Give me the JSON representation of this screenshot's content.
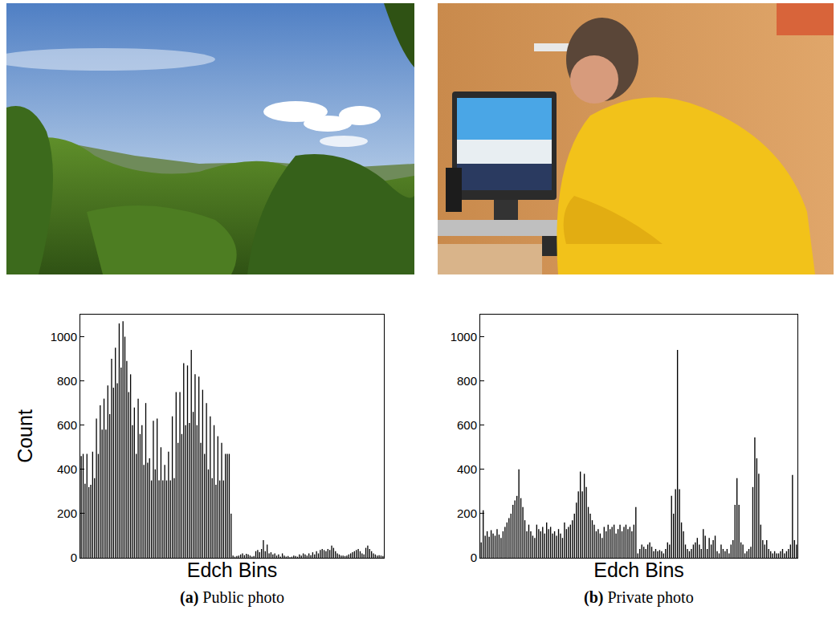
{
  "chart_data": [
    {
      "type": "bar",
      "title": "(a) Public photo",
      "x_label": "Edch Bins",
      "y_label": "Count",
      "color": "#000000",
      "grid": false,
      "tick_labels": "y",
      "ylim": [
        0,
        1100
      ],
      "yticks": [
        0,
        200,
        400,
        600,
        800,
        1000
      ],
      "categories": [
        null,
        null,
        null,
        null,
        null,
        null,
        null,
        null,
        null,
        null,
        null,
        null,
        null,
        null,
        null,
        null,
        null,
        null,
        null,
        null,
        null,
        null,
        null,
        null,
        null,
        null,
        null,
        null,
        null,
        null,
        null,
        null,
        null,
        null,
        null,
        null,
        null,
        null,
        null,
        null,
        null,
        null,
        null,
        null,
        null,
        null,
        null,
        null,
        null,
        null,
        null,
        null,
        null,
        null,
        null,
        null,
        null,
        null,
        null,
        null,
        null,
        null,
        null,
        null,
        null,
        null,
        null,
        null,
        null,
        null,
        null,
        null,
        null,
        null,
        null,
        null,
        null,
        null,
        null,
        null,
        null,
        null,
        null,
        null,
        null,
        null,
        null,
        null,
        null,
        null,
        null,
        null,
        null,
        null,
        null,
        null,
        null,
        null,
        null,
        null,
        null,
        null,
        null,
        null,
        null,
        null,
        null,
        null,
        null,
        null,
        null,
        null,
        null,
        null,
        null,
        null,
        null,
        null,
        null,
        null,
        null,
        null,
        null,
        null,
        null,
        null,
        null,
        null,
        null,
        null,
        null,
        null,
        null,
        null,
        null,
        null,
        null,
        null,
        null,
        null,
        null,
        null,
        null,
        null,
        null,
        null,
        null,
        null,
        null,
        null,
        null,
        null,
        null,
        null,
        null,
        null,
        null,
        null,
        null,
        null
      ],
      "values": [
        460,
        470,
        335,
        470,
        320,
        330,
        480,
        360,
        630,
        470,
        690,
        580,
        720,
        580,
        780,
        650,
        900,
        770,
        950,
        790,
        1060,
        860,
        1070,
        1000,
        890,
        750,
        830,
        600,
        680,
        470,
        720,
        560,
        600,
        420,
        700,
        430,
        450,
        350,
        620,
        400,
        630,
        350,
        500,
        350,
        420,
        350,
        480,
        350,
        640,
        360,
        750,
        520,
        750,
        560,
        880,
        600,
        870,
        610,
        940,
        660,
        830,
        600,
        820,
        520,
        760,
        470,
        700,
        400,
        640,
        360,
        600,
        330,
        550,
        350,
        520,
        350,
        470,
        470,
        470,
        200,
        10,
        5,
        8,
        10,
        15,
        20,
        12,
        18,
        15,
        10,
        5,
        8,
        30,
        35,
        25,
        40,
        80,
        30,
        60,
        20,
        25,
        15,
        20,
        10,
        15,
        5,
        20,
        10,
        5,
        8,
        3,
        5,
        10,
        8,
        5,
        15,
        10,
        20,
        15,
        10,
        20,
        12,
        25,
        15,
        30,
        20,
        35,
        40,
        35,
        30,
        40,
        35,
        55,
        45,
        30,
        20,
        15,
        10,
        10,
        8,
        10,
        15,
        20,
        25,
        30,
        35,
        40,
        30,
        20,
        15,
        45,
        55,
        40,
        30,
        20,
        15,
        10,
        12,
        10,
        8
      ]
    },
    {
      "type": "bar",
      "title": "(b) Private photo",
      "x_label": "Edch Bins",
      "color": "#000000",
      "grid": false,
      "tick_labels": "y",
      "ylim": [
        0,
        1100
      ],
      "yticks": [
        0,
        200,
        400,
        600,
        800,
        1000
      ],
      "categories": [
        null,
        null,
        null,
        null,
        null,
        null,
        null,
        null,
        null,
        null,
        null,
        null,
        null,
        null,
        null,
        null,
        null,
        null,
        null,
        null,
        null,
        null,
        null,
        null,
        null,
        null,
        null,
        null,
        null,
        null,
        null,
        null,
        null,
        null,
        null,
        null,
        null,
        null,
        null,
        null,
        null,
        null,
        null,
        null,
        null,
        null,
        null,
        null,
        null,
        null,
        null,
        null,
        null,
        null,
        null,
        null,
        null,
        null,
        null,
        null,
        null,
        null,
        null,
        null,
        null,
        null,
        null,
        null,
        null,
        null,
        null,
        null,
        null,
        null,
        null,
        null,
        null,
        null,
        null,
        null,
        null,
        null,
        null,
        null,
        null,
        null,
        null,
        null,
        null,
        null,
        null,
        null,
        null,
        null,
        null,
        null,
        null,
        null,
        null,
        null,
        null,
        null,
        null,
        null,
        null,
        null,
        null,
        null,
        null,
        null,
        null,
        null,
        null,
        null,
        null,
        null,
        null,
        null,
        null,
        null,
        null,
        null,
        null,
        null,
        null,
        null,
        null,
        null,
        null,
        null,
        null,
        null,
        null,
        null,
        null,
        null,
        null,
        null,
        null,
        null,
        null,
        null,
        null,
        null,
        null,
        null,
        null,
        null,
        null,
        null,
        null,
        null,
        null,
        null,
        null,
        null,
        null,
        null,
        null,
        null
      ],
      "values": [
        70,
        215,
        100,
        120,
        95,
        125,
        110,
        100,
        130,
        105,
        90,
        120,
        140,
        160,
        180,
        200,
        240,
        260,
        280,
        400,
        270,
        230,
        170,
        120,
        150,
        120,
        100,
        90,
        150,
        130,
        120,
        140,
        110,
        160,
        130,
        140,
        110,
        120,
        100,
        130,
        110,
        90,
        160,
        130,
        140,
        150,
        170,
        200,
        250,
        300,
        390,
        300,
        380,
        320,
        230,
        200,
        170,
        150,
        120,
        130,
        110,
        90,
        140,
        120,
        150,
        130,
        140,
        150,
        110,
        130,
        150,
        120,
        140,
        150,
        130,
        140,
        120,
        150,
        230,
        20,
        40,
        60,
        50,
        40,
        60,
        70,
        50,
        30,
        40,
        30,
        35,
        30,
        20,
        40,
        70,
        60,
        280,
        200,
        310,
        940,
        310,
        160,
        120,
        60,
        40,
        30,
        40,
        60,
        70,
        90,
        60,
        40,
        130,
        100,
        40,
        90,
        60,
        80,
        100,
        30,
        20,
        60,
        40,
        30,
        40,
        20,
        60,
        80,
        240,
        360,
        240,
        70,
        60,
        20,
        30,
        40,
        50,
        320,
        545,
        450,
        380,
        150,
        80,
        60,
        80,
        40,
        30,
        20,
        30,
        20,
        20,
        30,
        40,
        20,
        30,
        40,
        60,
        375,
        80,
        60
      ]
    }
  ]
}
